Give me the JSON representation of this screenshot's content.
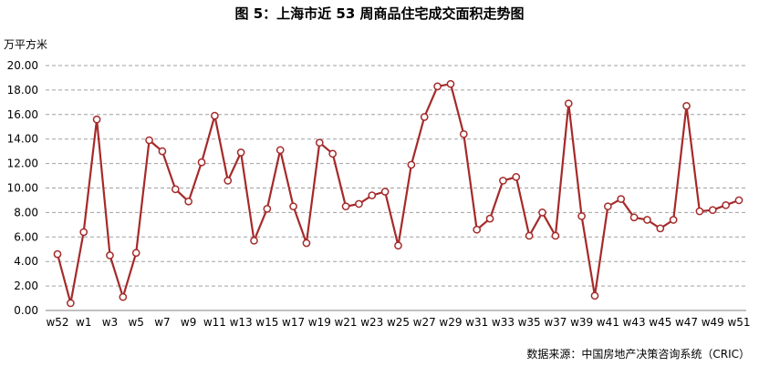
{
  "chart_data": {
    "type": "line",
    "title": "图 5：上海市近 53 周商品住宅成交面积走势图",
    "ylabel": "万平方米",
    "ylim": [
      0,
      20
    ],
    "y_ticks": [
      "20.00",
      "18.00",
      "16.00",
      "14.00",
      "12.00",
      "10.00",
      "8.00",
      "6.00",
      "4.00",
      "2.00",
      "0.00"
    ],
    "x_tick_labels": [
      "w52",
      "w1",
      "w3",
      "w5",
      "w7",
      "w9",
      "w11",
      "w13",
      "w15",
      "w17",
      "w19",
      "w21",
      "w23",
      "w25",
      "w27",
      "w29",
      "w31",
      "w33",
      "w35",
      "w37",
      "w39",
      "w41",
      "w43",
      "w45",
      "w47",
      "w49",
      "w51"
    ],
    "categories": [
      "w52",
      "w53",
      "w1",
      "w2",
      "w3",
      "w4",
      "w5",
      "w6",
      "w7",
      "w8",
      "w9",
      "w10",
      "w11",
      "w12",
      "w13",
      "w14",
      "w15",
      "w16",
      "w17",
      "w18",
      "w19",
      "w20",
      "w21",
      "w22",
      "w23",
      "w24",
      "w25",
      "w26",
      "w27",
      "w28",
      "w29",
      "w30",
      "w31",
      "w32",
      "w33",
      "w34",
      "w35",
      "w36",
      "w37",
      "w38",
      "w39",
      "w40",
      "w41",
      "w42",
      "w43",
      "w44",
      "w45",
      "w46",
      "w47",
      "w48",
      "w49",
      "w50",
      "w51"
    ],
    "values": [
      4.6,
      0.6,
      6.4,
      15.6,
      4.5,
      1.1,
      4.7,
      13.9,
      13.0,
      9.9,
      8.9,
      12.1,
      15.9,
      10.6,
      12.9,
      5.7,
      8.3,
      13.1,
      8.5,
      5.5,
      13.7,
      12.8,
      8.5,
      8.7,
      9.4,
      9.7,
      5.3,
      11.9,
      15.8,
      18.3,
      18.5,
      14.4,
      6.6,
      7.5,
      10.6,
      10.9,
      6.1,
      8.0,
      6.1,
      16.9,
      7.7,
      1.2,
      8.5,
      9.1,
      7.6,
      7.4,
      6.7,
      7.4,
      16.7,
      8.1,
      8.2,
      8.6,
      9.0
    ],
    "grid": true,
    "legend": "none",
    "line_color": "#a52a2a",
    "marker_fill": "#ffffff",
    "grid_color": "#a0a0a0"
  },
  "source_note": "数据来源：中国房地产决策咨询系统（CRIC）"
}
